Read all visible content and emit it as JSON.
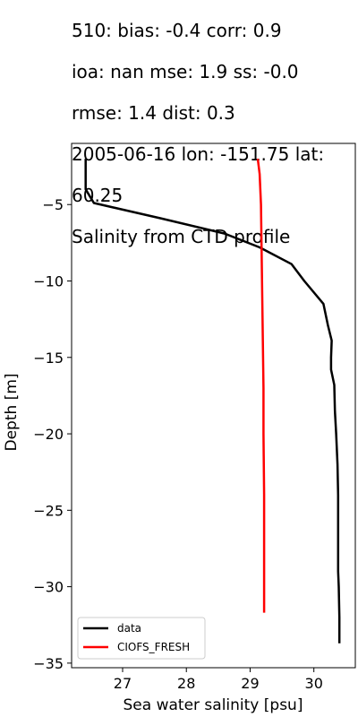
{
  "title_lines": [
    "510: bias: -0.4  corr: 0.9",
    "ioa: nan  mse: 1.9  ss: -0.0",
    "rmse: 1.4  dist: 0.3",
    "2005-06-16 lon: -151.75 lat:",
    "60.25",
    "Salinity from CTD profile"
  ],
  "chart_data": {
    "type": "line",
    "xlabel": "Sea water salinity [psu]",
    "ylabel": "Depth [m]",
    "xlim": [
      26.2,
      30.65
    ],
    "ylim": [
      -35.3,
      -1.0
    ],
    "xticks": [
      27,
      28,
      29,
      30
    ],
    "yticks": [
      -5,
      -10,
      -15,
      -20,
      -25,
      -30,
      -35
    ],
    "legend_position": "lower-left",
    "colors": {
      "data": "#000000",
      "CIOFS_FRESH": "#ff0000"
    },
    "series": [
      {
        "name": "data",
        "points": [
          [
            26.42,
            -2.0
          ],
          [
            26.42,
            -3.0
          ],
          [
            26.42,
            -4.0
          ],
          [
            26.55,
            -4.9
          ],
          [
            27.6,
            -5.9
          ],
          [
            28.6,
            -6.9
          ],
          [
            29.15,
            -7.8
          ],
          [
            29.65,
            -8.9
          ],
          [
            29.85,
            -10.0
          ],
          [
            30.15,
            -11.5
          ],
          [
            30.22,
            -12.9
          ],
          [
            30.28,
            -13.9
          ],
          [
            30.27,
            -15.0
          ],
          [
            30.27,
            -15.8
          ],
          [
            30.32,
            -16.8
          ],
          [
            30.33,
            -18.5
          ],
          [
            30.35,
            -20.0
          ],
          [
            30.37,
            -22.0
          ],
          [
            30.38,
            -24.0
          ],
          [
            30.38,
            -26.0
          ],
          [
            30.38,
            -27.0
          ],
          [
            30.38,
            -28.0
          ],
          [
            30.38,
            -29.0
          ],
          [
            30.39,
            -30.0
          ],
          [
            30.4,
            -32.0
          ],
          [
            30.4,
            -33.7
          ]
        ]
      },
      {
        "name": "CIOFS_FRESH",
        "points": [
          [
            29.12,
            -2.0
          ],
          [
            29.15,
            -3.0
          ],
          [
            29.17,
            -5.0
          ],
          [
            29.18,
            -8.0
          ],
          [
            29.19,
            -11.0
          ],
          [
            29.2,
            -14.0
          ],
          [
            29.21,
            -17.0
          ],
          [
            29.21,
            -20.0
          ],
          [
            29.22,
            -24.0
          ],
          [
            29.22,
            -28.0
          ],
          [
            29.22,
            -31.7
          ]
        ]
      }
    ]
  }
}
